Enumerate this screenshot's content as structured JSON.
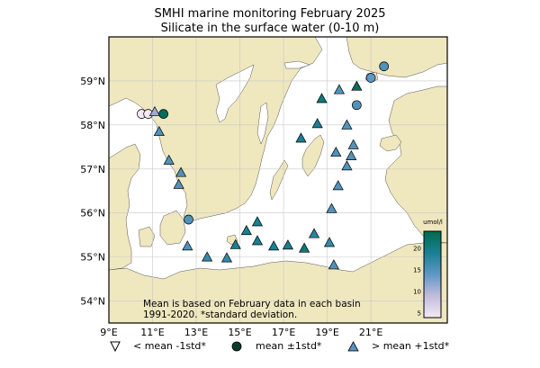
{
  "title": {
    "line1": "SMHI marine monitoring February 2025",
    "line2": "Silicate in the surface water (0-10 m)"
  },
  "axes": {
    "lon_ticks": [
      "9°E",
      "11°E",
      "13°E",
      "15°E",
      "17°E",
      "19°E",
      "21°E"
    ],
    "lat_ticks": [
      "59°N",
      "58°N",
      "57°N",
      "56°N",
      "55°N",
      "54°N"
    ],
    "lon_range": [
      9,
      24.5
    ],
    "lat_range": [
      53.5,
      60
    ]
  },
  "colorbar": {
    "unit": "umol/l",
    "ticks": [
      "20",
      "15",
      "10",
      "5"
    ],
    "range": [
      4,
      24
    ],
    "colors": [
      "#f4e9f4",
      "#c2bcdc",
      "#5f97c5",
      "#1a7f93",
      "#006a4e"
    ]
  },
  "note": {
    "line1": "Mean is based on February data in each basin",
    "line2": "1991-2020. *standard deviation."
  },
  "legend": {
    "below": "< mean -1std*",
    "mean": "mean ±1std*",
    "above": "> mean +1std*"
  },
  "colors": {
    "land": "#efe7be",
    "sea": "#ffffff",
    "grid": "#c8c8c8"
  },
  "stations": [
    {
      "lon": 10.5,
      "lat": 58.25,
      "marker": "circle",
      "value": 4
    },
    {
      "lon": 10.8,
      "lat": 58.25,
      "marker": "circle",
      "value": 4
    },
    {
      "lon": 11.1,
      "lat": 58.3,
      "marker": "triangle",
      "value": 11
    },
    {
      "lon": 11.5,
      "lat": 58.25,
      "marker": "circle",
      "value": 23
    },
    {
      "lon": 11.3,
      "lat": 57.85,
      "marker": "triangle",
      "value": 15
    },
    {
      "lon": 11.75,
      "lat": 57.2,
      "marker": "triangle",
      "value": 15
    },
    {
      "lon": 12.3,
      "lat": 56.92,
      "marker": "triangle",
      "value": 15
    },
    {
      "lon": 12.2,
      "lat": 56.65,
      "marker": "triangle",
      "value": 15
    },
    {
      "lon": 12.65,
      "lat": 55.85,
      "marker": "circle",
      "value": 15
    },
    {
      "lon": 12.6,
      "lat": 55.25,
      "marker": "triangle",
      "value": 15
    },
    {
      "lon": 13.5,
      "lat": 55.0,
      "marker": "triangle",
      "value": 17
    },
    {
      "lon": 14.4,
      "lat": 54.98,
      "marker": "triangle",
      "value": 17
    },
    {
      "lon": 14.8,
      "lat": 55.28,
      "marker": "triangle",
      "value": 19
    },
    {
      "lon": 15.3,
      "lat": 55.6,
      "marker": "triangle",
      "value": 19
    },
    {
      "lon": 15.8,
      "lat": 55.8,
      "marker": "triangle",
      "value": 19
    },
    {
      "lon": 15.8,
      "lat": 55.37,
      "marker": "triangle",
      "value": 19
    },
    {
      "lon": 16.55,
      "lat": 55.25,
      "marker": "triangle",
      "value": 19
    },
    {
      "lon": 17.2,
      "lat": 55.27,
      "marker": "triangle",
      "value": 19
    },
    {
      "lon": 17.95,
      "lat": 55.2,
      "marker": "triangle",
      "value": 21
    },
    {
      "lon": 18.4,
      "lat": 55.53,
      "marker": "triangle",
      "value": 18
    },
    {
      "lon": 19.1,
      "lat": 55.33,
      "marker": "triangle",
      "value": 17
    },
    {
      "lon": 19.3,
      "lat": 54.82,
      "marker": "triangle",
      "value": 15
    },
    {
      "lon": 19.2,
      "lat": 56.1,
      "marker": "triangle",
      "value": 15
    },
    {
      "lon": 19.5,
      "lat": 56.62,
      "marker": "triangle",
      "value": 15
    },
    {
      "lon": 19.4,
      "lat": 57.38,
      "marker": "triangle",
      "value": 15
    },
    {
      "lon": 19.9,
      "lat": 57.07,
      "marker": "triangle",
      "value": 15
    },
    {
      "lon": 20.1,
      "lat": 57.3,
      "marker": "triangle",
      "value": 15
    },
    {
      "lon": 20.2,
      "lat": 57.55,
      "marker": "triangle",
      "value": 15
    },
    {
      "lon": 19.9,
      "lat": 58.0,
      "marker": "triangle",
      "value": 15
    },
    {
      "lon": 17.8,
      "lat": 57.7,
      "marker": "triangle",
      "value": 19
    },
    {
      "lon": 18.55,
      "lat": 58.03,
      "marker": "triangle",
      "value": 19
    },
    {
      "lon": 18.75,
      "lat": 58.6,
      "marker": "triangle",
      "value": 21
    },
    {
      "lon": 19.55,
      "lat": 58.8,
      "marker": "triangle",
      "value": 15
    },
    {
      "lon": 20.35,
      "lat": 58.88,
      "marker": "triangle",
      "value": 23
    },
    {
      "lon": 20.35,
      "lat": 58.45,
      "marker": "circle",
      "value": 15
    },
    {
      "lon": 21.0,
      "lat": 59.07,
      "marker": "circle",
      "value": 14
    },
    {
      "lon": 21.6,
      "lat": 59.33,
      "marker": "circle",
      "value": 15
    }
  ]
}
